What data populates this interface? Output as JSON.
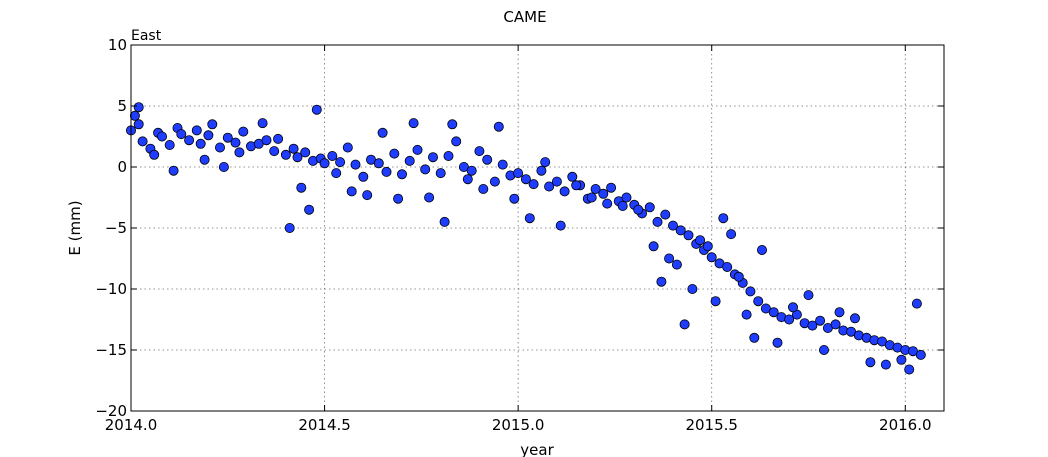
{
  "chart_data": {
    "type": "scatter",
    "title": "CAME",
    "annotation": "East",
    "xlabel": "year",
    "ylabel": "E (mm)",
    "xlim": [
      2014.0,
      2016.1
    ],
    "ylim": [
      -20,
      10
    ],
    "x_ticks": [
      2014.0,
      2014.5,
      2015.0,
      2015.5,
      2016.0
    ],
    "x_tick_labels": [
      "2014.0",
      "2014.5",
      "2015.0",
      "2015.5",
      "2016.0"
    ],
    "y_ticks": [
      10,
      5,
      0,
      -5,
      -10,
      -15,
      -20
    ],
    "y_tick_labels": [
      "10",
      "5",
      "0",
      "−5",
      "−10",
      "−15",
      "−20"
    ],
    "grid": true,
    "marker_color": "#1f3dff",
    "series": [
      {
        "x": [
          2014.0,
          2014.01,
          2014.02,
          2014.03,
          2014.05,
          2014.07,
          2014.08,
          2014.1,
          2014.12,
          2014.13,
          2014.15,
          2014.17,
          2014.18,
          2014.2,
          2014.21,
          2014.23,
          2014.25,
          2014.27,
          2014.29,
          2014.31,
          2014.33,
          2014.35,
          2014.37,
          2014.38,
          2014.4,
          2014.42,
          2014.43,
          2014.45,
          2014.47,
          2014.49,
          2014.5,
          2014.52,
          2014.54,
          2014.56,
          2014.58,
          2014.6,
          2014.62,
          2014.64,
          2014.66,
          2014.68,
          2014.7,
          2014.72,
          2014.74,
          2014.76,
          2014.78,
          2014.8,
          2014.82,
          2014.84,
          2014.86,
          2014.88,
          2014.9,
          2014.92,
          2014.94,
          2014.96,
          2014.98,
          2015.0,
          2015.02,
          2015.04,
          2015.06,
          2015.08,
          2015.1,
          2015.12,
          2015.14,
          2015.16,
          2015.18,
          2015.2,
          2015.22,
          2015.24,
          2015.26,
          2015.28,
          2015.3,
          2015.32,
          2015.34,
          2015.36,
          2015.38,
          2015.4,
          2015.42,
          2015.44,
          2015.46,
          2015.48,
          2015.5,
          2015.52,
          2015.54,
          2015.56,
          2015.58,
          2015.6,
          2015.62,
          2015.64,
          2015.66,
          2015.68,
          2015.7,
          2015.72,
          2015.74,
          2015.76,
          2015.78,
          2015.8,
          2015.82,
          2015.84,
          2015.86,
          2015.88,
          2015.9,
          2015.92,
          2015.94,
          2015.96,
          2015.98,
          2016.0,
          2016.02,
          2016.04,
          2014.02,
          2014.06,
          2014.11,
          2014.19,
          2014.24,
          2014.28,
          2014.34,
          2014.41,
          2014.44,
          2014.46,
          2014.48,
          2014.53,
          2014.57,
          2014.61,
          2014.65,
          2014.69,
          2014.73,
          2014.77,
          2014.81,
          2014.83,
          2014.87,
          2014.91,
          2014.95,
          2014.99,
          2015.03,
          2015.07,
          2015.11,
          2015.15,
          2015.19,
          2015.23,
          2015.27,
          2015.31,
          2015.35,
          2015.37,
          2015.39,
          2015.41,
          2015.43,
          2015.45,
          2015.47,
          2015.49,
          2015.51,
          2015.53,
          2015.55,
          2015.57,
          2015.59,
          2015.61,
          2015.63,
          2015.67,
          2015.71,
          2015.75,
          2015.79,
          2015.83,
          2015.87,
          2015.91,
          2015.95,
          2015.99,
          2016.01,
          2016.03
        ],
        "y": [
          3.0,
          4.2,
          3.5,
          2.1,
          1.5,
          2.8,
          2.5,
          1.8,
          3.2,
          2.7,
          2.2,
          3.0,
          1.9,
          2.6,
          3.5,
          1.6,
          2.4,
          2.0,
          2.9,
          1.7,
          1.9,
          2.2,
          1.3,
          2.3,
          1.0,
          1.5,
          0.8,
          1.2,
          0.5,
          0.7,
          0.3,
          0.9,
          0.4,
          1.6,
          0.2,
          -0.8,
          0.6,
          0.3,
          -0.4,
          1.1,
          -0.6,
          0.5,
          1.4,
          -0.2,
          0.8,
          -0.5,
          0.9,
          2.1,
          0.0,
          -0.3,
          1.3,
          0.6,
          -1.2,
          0.2,
          -0.7,
          -0.5,
          -1.0,
          -1.4,
          -0.3,
          -1.6,
          -1.2,
          -2.0,
          -0.8,
          -1.5,
          -2.6,
          -1.8,
          -2.2,
          -1.7,
          -2.8,
          -2.5,
          -3.1,
          -3.8,
          -3.3,
          -4.5,
          -3.9,
          -4.8,
          -5.2,
          -5.6,
          -6.3,
          -6.8,
          -7.4,
          -7.9,
          -8.2,
          -8.8,
          -9.5,
          -10.2,
          -11.0,
          -11.6,
          -11.9,
          -12.3,
          -12.5,
          -12.1,
          -12.8,
          -13.0,
          -12.6,
          -13.2,
          -12.9,
          -13.4,
          -13.5,
          -13.8,
          -14.0,
          -14.2,
          -14.3,
          -14.6,
          -14.8,
          -15.0,
          -15.1,
          -15.4,
          4.9,
          1.0,
          -0.3,
          0.6,
          0.0,
          1.2,
          3.6,
          -5.0,
          -1.7,
          -3.5,
          4.7,
          -0.5,
          -2.0,
          -2.3,
          2.8,
          -2.6,
          3.6,
          -2.5,
          -4.5,
          3.5,
          -1.0,
          -1.8,
          3.3,
          -2.6,
          -4.2,
          0.4,
          -4.8,
          -1.5,
          -2.5,
          -3.0,
          -3.2,
          -3.5,
          -6.5,
          -9.4,
          -7.5,
          -8.0,
          -12.9,
          -10.0,
          -6.0,
          -6.5,
          -11.0,
          -4.2,
          -5.5,
          -9.0,
          -12.1,
          -14.0,
          -6.8,
          -14.4,
          -11.5,
          -10.5,
          -15.0,
          -11.9,
          -12.4,
          -16.0,
          -16.2,
          -15.8,
          -16.6,
          -11.2
        ]
      }
    ]
  }
}
